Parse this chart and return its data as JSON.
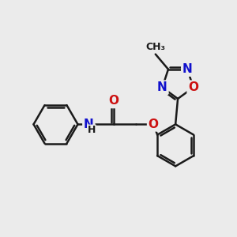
{
  "background_color": "#ebebeb",
  "bond_color": "#1a1a1a",
  "bond_width": 1.8,
  "atom_colors": {
    "N": "#1010cc",
    "O": "#cc1010",
    "C": "#1a1a1a",
    "H": "#1a1a1a"
  },
  "font_size_atom": 11,
  "font_size_methyl": 9,
  "dbo": 0.055,
  "xlim": [
    0,
    10
  ],
  "ylim": [
    0,
    10
  ]
}
